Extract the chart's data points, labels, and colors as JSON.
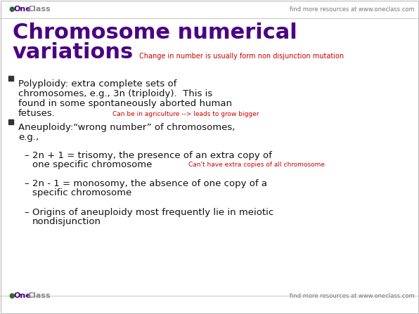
{
  "bg_color": "#ffffff",
  "border_color": "#bbbbbb",
  "title_line1": "Chromosome numerical",
  "title_line2": "variations",
  "title_color": "#4B0082",
  "title_fontsize": 22,
  "subtitle_note": "Change in number is usually form non disjunction mutation",
  "subtitle_note_color": "#cc0000",
  "subtitle_note_fontsize": 7,
  "header_find": "find more resources at www.oneclass.com",
  "footer_find": "find more resources at www.oneclass.com",
  "logo_color_one": "#4B0082",
  "logo_color_class": "#888888",
  "logo_green": "#2d6a2d",
  "bullet_color": "#333333",
  "body_fontsize": 9.5,
  "body_color": "#111111",
  "red_note_color": "#cc0000",
  "red_note_fontsize": 6.5,
  "bullet1_lines": [
    "Polyploidy: extra complete sets of",
    "chromosomes, e.g., 3n (triploidy).  This is",
    "found in some spontaneously aborted human",
    "fetuses."
  ],
  "bullet1_note": "Can be in agriculture --> leads to grow bigger",
  "bullet2_lines": [
    "Aneuploidy:“wrong number” of chromosomes,",
    "e.g.,"
  ],
  "sub1_lines": [
    "2n + 1 = trisomy, the presence of an extra copy of",
    "one specific chromosome"
  ],
  "sub1_note": "Can't have extra copies of all chromosome",
  "sub2_lines": [
    "2n - 1 = monosomy, the absence of one copy of a",
    "specific chromosome"
  ],
  "sub3_lines": [
    "Origins of aneuploidy most frequently lie in meiotic",
    "nondisjunction"
  ]
}
